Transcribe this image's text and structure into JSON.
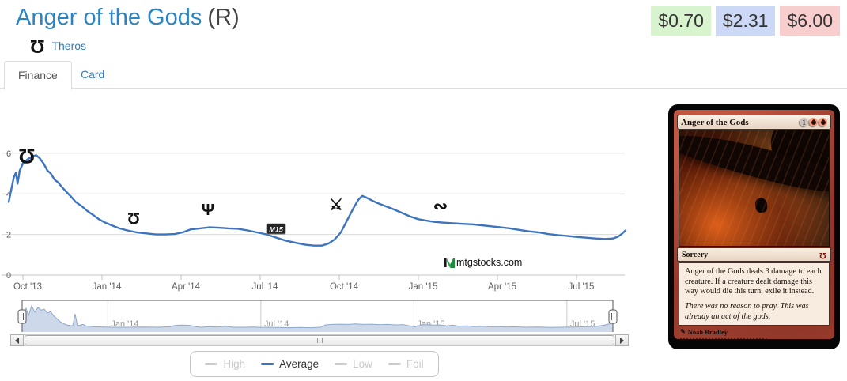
{
  "header": {
    "title": "Anger of the Gods",
    "rarity": "(R)",
    "set_name": "Theros",
    "set_icon_glyph": "Ω"
  },
  "prices": {
    "low": "$0.70",
    "average": "$2.31",
    "high": "$6.00",
    "low_bg": "#d8f4cf",
    "average_bg": "#ccd9f6",
    "high_bg": "#f8cdcd"
  },
  "tabs": [
    {
      "label": "Finance",
      "active": true
    },
    {
      "label": "Card",
      "active": false
    }
  ],
  "watermark": "mtgstocks.com",
  "legend": [
    {
      "label": "High",
      "active": false
    },
    {
      "label": "Average",
      "active": true,
      "color": "#3d74c0"
    },
    {
      "label": "Low",
      "active": false
    },
    {
      "label": "Foil",
      "active": false
    }
  ],
  "chart_data": {
    "type": "line",
    "title": "",
    "xlabel": "",
    "ylabel": "",
    "ylim": [
      0,
      6.5
    ],
    "yticks": [
      0,
      2,
      4,
      6
    ],
    "grid": true,
    "legend_position": "bottom",
    "line_color": "#3d74c0",
    "xticks": [
      {
        "t": 2013.75,
        "label": "Oct '13"
      },
      {
        "t": 2014.0,
        "label": "Jan '14"
      },
      {
        "t": 2014.25,
        "label": "Apr '14"
      },
      {
        "t": 2014.5,
        "label": "Jul '14"
      },
      {
        "t": 2014.75,
        "label": "Oct '14"
      },
      {
        "t": 2015.0,
        "label": "Jan '15"
      },
      {
        "t": 2015.25,
        "label": "Apr '15"
      },
      {
        "t": 2015.5,
        "label": "Jul '15"
      }
    ],
    "series": [
      {
        "name": "Average",
        "color": "#3d74c0",
        "points": [
          [
            2013.705,
            3.6
          ],
          [
            2013.713,
            4.2
          ],
          [
            2013.721,
            4.8
          ],
          [
            2013.728,
            5.05
          ],
          [
            2013.733,
            4.5
          ],
          [
            2013.74,
            5.15
          ],
          [
            2013.75,
            5.5
          ],
          [
            2013.765,
            5.7
          ],
          [
            2013.78,
            5.85
          ],
          [
            2013.792,
            5.9
          ],
          [
            2013.803,
            5.75
          ],
          [
            2013.815,
            5.5
          ],
          [
            2013.827,
            5.15
          ],
          [
            2013.838,
            5.0
          ],
          [
            2013.85,
            4.7
          ],
          [
            2013.862,
            4.55
          ],
          [
            2013.875,
            4.3
          ],
          [
            2013.887,
            4.1
          ],
          [
            2013.9,
            3.9
          ],
          [
            2013.917,
            3.6
          ],
          [
            2013.935,
            3.4
          ],
          [
            2013.954,
            3.15
          ],
          [
            2013.973,
            2.95
          ],
          [
            2013.99,
            2.75
          ],
          [
            2014.008,
            2.6
          ],
          [
            2014.03,
            2.45
          ],
          [
            2014.055,
            2.3
          ],
          [
            2014.08,
            2.2
          ],
          [
            2014.11,
            2.1
          ],
          [
            2014.14,
            2.05
          ],
          [
            2014.17,
            2.0
          ],
          [
            2014.2,
            2.0
          ],
          [
            2014.23,
            2.02
          ],
          [
            2014.255,
            2.1
          ],
          [
            2014.28,
            2.25
          ],
          [
            2014.31,
            2.3
          ],
          [
            2014.34,
            2.35
          ],
          [
            2014.37,
            2.33
          ],
          [
            2014.4,
            2.3
          ],
          [
            2014.43,
            2.28
          ],
          [
            2014.46,
            2.2
          ],
          [
            2014.49,
            2.1
          ],
          [
            2014.52,
            2.0
          ],
          [
            2014.55,
            1.85
          ],
          [
            2014.58,
            1.7
          ],
          [
            2014.61,
            1.6
          ],
          [
            2014.64,
            1.5
          ],
          [
            2014.67,
            1.45
          ],
          [
            2014.695,
            1.45
          ],
          [
            2014.715,
            1.55
          ],
          [
            2014.735,
            1.75
          ],
          [
            2014.755,
            2.1
          ],
          [
            2014.775,
            2.7
          ],
          [
            2014.795,
            3.3
          ],
          [
            2014.81,
            3.7
          ],
          [
            2014.822,
            3.9
          ],
          [
            2014.835,
            3.82
          ],
          [
            2014.85,
            3.7
          ],
          [
            2014.87,
            3.55
          ],
          [
            2014.895,
            3.4
          ],
          [
            2014.92,
            3.25
          ],
          [
            2014.95,
            3.05
          ],
          [
            2014.975,
            2.88
          ],
          [
            2015.0,
            2.75
          ],
          [
            2015.025,
            2.68
          ],
          [
            2015.05,
            2.62
          ],
          [
            2015.08,
            2.58
          ],
          [
            2015.11,
            2.55
          ],
          [
            2015.14,
            2.52
          ],
          [
            2015.17,
            2.5
          ],
          [
            2015.2,
            2.45
          ],
          [
            2015.23,
            2.4
          ],
          [
            2015.26,
            2.35
          ],
          [
            2015.29,
            2.3
          ],
          [
            2015.32,
            2.22
          ],
          [
            2015.35,
            2.15
          ],
          [
            2015.38,
            2.1
          ],
          [
            2015.41,
            2.02
          ],
          [
            2015.44,
            1.97
          ],
          [
            2015.47,
            1.93
          ],
          [
            2015.5,
            1.88
          ],
          [
            2015.53,
            1.84
          ],
          [
            2015.56,
            1.8
          ],
          [
            2015.59,
            1.78
          ],
          [
            2015.615,
            1.8
          ],
          [
            2015.632,
            1.9
          ],
          [
            2015.645,
            2.05
          ],
          [
            2015.655,
            2.2
          ]
        ]
      }
    ],
    "set_markers": [
      {
        "set": "Theros",
        "icon": "theros-set-icon",
        "glyph": "Ω",
        "flip": true,
        "t": 2013.762,
        "value": 5.85,
        "size": 26
      },
      {
        "set": "Born of the Gods",
        "icon": "born-of-the-gods-set-icon",
        "glyph": "Ʊ",
        "flip": false,
        "t": 2014.1,
        "value": 2.75,
        "size": 20
      },
      {
        "set": "Journey into Nyx",
        "icon": "journey-into-nyx-set-icon",
        "glyph": "Ψ",
        "flip": false,
        "t": 2014.335,
        "value": 3.2,
        "size": 20
      },
      {
        "set": "Magic 2015",
        "icon": "m15-set-icon",
        "glyph": "M15",
        "badge": true,
        "t": 2014.55,
        "value": 2.25,
        "size": 9
      },
      {
        "set": "Khans of Tarkir",
        "icon": "khans-of-tarkir-set-icon",
        "glyph": "⚔",
        "flip": false,
        "t": 2014.74,
        "value": 3.45,
        "size": 20
      },
      {
        "set": "Dragons of Tarkir",
        "icon": "dragons-of-tarkir-set-icon",
        "glyph": "∾",
        "flip": false,
        "t": 2015.07,
        "value": 3.4,
        "size": 22
      }
    ],
    "navigator": {
      "labels": [
        {
          "t": 2014.0,
          "label": "Jan '14"
        },
        {
          "t": 2014.5,
          "label": "Jul '14"
        },
        {
          "t": 2015.0,
          "label": "Jan '15"
        },
        {
          "t": 2015.5,
          "label": "Jul '15"
        }
      ],
      "points": [
        [
          2013.72,
          2.5
        ],
        [
          2013.733,
          5.0
        ],
        [
          2013.741,
          3.5
        ],
        [
          2013.751,
          5.5
        ],
        [
          2013.761,
          4.2
        ],
        [
          2013.772,
          5.2
        ],
        [
          2013.782,
          4.6
        ],
        [
          2013.792,
          4.8
        ],
        [
          2013.803,
          4.0
        ],
        [
          2013.813,
          4.3
        ],
        [
          2013.823,
          3.4
        ],
        [
          2013.834,
          2.8
        ],
        [
          2013.844,
          2.2
        ],
        [
          2013.854,
          1.8
        ],
        [
          2013.865,
          1.5
        ],
        [
          2013.875,
          1.4
        ],
        [
          2013.885,
          1.3
        ],
        [
          2013.893,
          3.8
        ],
        [
          2013.901,
          1.3
        ],
        [
          2013.919,
          1.6
        ],
        [
          2013.932,
          1.2
        ],
        [
          2013.958,
          1.1
        ],
        [
          2014.009,
          1.0
        ],
        [
          2014.061,
          1.0
        ],
        [
          2014.113,
          1.05
        ],
        [
          2014.165,
          1.0
        ],
        [
          2014.203,
          1.1
        ],
        [
          2014.221,
          1.4
        ],
        [
          2014.242,
          1.45
        ],
        [
          2014.268,
          1.4
        ],
        [
          2014.289,
          1.1
        ],
        [
          2014.307,
          1.0
        ],
        [
          2014.333,
          1.15
        ],
        [
          2014.358,
          1.05
        ],
        [
          2014.384,
          1.2
        ],
        [
          2014.41,
          1.0
        ],
        [
          2014.449,
          1.0
        ],
        [
          2014.475,
          1.05
        ],
        [
          2014.5,
          0.95
        ],
        [
          2014.526,
          1.0
        ],
        [
          2014.552,
          0.95
        ],
        [
          2014.591,
          0.9
        ],
        [
          2014.63,
          0.95
        ],
        [
          2014.668,
          0.9
        ],
        [
          2014.694,
          1.0
        ],
        [
          2014.712,
          1.5
        ],
        [
          2014.733,
          1.6
        ],
        [
          2014.759,
          1.65
        ],
        [
          2014.785,
          1.6
        ],
        [
          2014.81,
          1.7
        ],
        [
          2014.836,
          1.6
        ],
        [
          2014.862,
          1.65
        ],
        [
          2014.888,
          1.55
        ],
        [
          2014.914,
          1.6
        ],
        [
          2014.94,
          1.5
        ],
        [
          2014.965,
          1.55
        ],
        [
          2014.986,
          1.3
        ],
        [
          2015.004,
          1.1
        ],
        [
          2015.025,
          1.5
        ],
        [
          2015.043,
          1.55
        ],
        [
          2015.064,
          1.45
        ],
        [
          2015.084,
          1.5
        ],
        [
          2015.108,
          1.3
        ],
        [
          2015.126,
          1.45
        ],
        [
          2015.146,
          1.2
        ],
        [
          2015.172,
          1.3
        ],
        [
          2015.198,
          1.15
        ],
        [
          2015.224,
          1.2
        ],
        [
          2015.25,
          1.1
        ],
        [
          2015.276,
          1.15
        ],
        [
          2015.301,
          1.05
        ],
        [
          2015.327,
          1.1
        ],
        [
          2015.366,
          1.0
        ],
        [
          2015.405,
          1.05
        ],
        [
          2015.444,
          0.95
        ],
        [
          2015.482,
          1.0
        ],
        [
          2015.521,
          1.05
        ],
        [
          2015.56,
          1.1
        ],
        [
          2015.599,
          1.2
        ],
        [
          2015.625,
          1.5
        ],
        [
          2015.65,
          1.9
        ]
      ]
    }
  },
  "card": {
    "name": "Anger of the Gods",
    "mana_cost": {
      "generic": "1",
      "red_pips": 2
    },
    "type_line": "Sorcery",
    "rules_text": "Anger of the Gods deals 3 damage to each creature. If a creature dealt damage this way would die this turn, exile it instead.",
    "flavor_text": "There was no reason to pray. This was already an act of the gods.",
    "artist": "Noah Bradley"
  }
}
